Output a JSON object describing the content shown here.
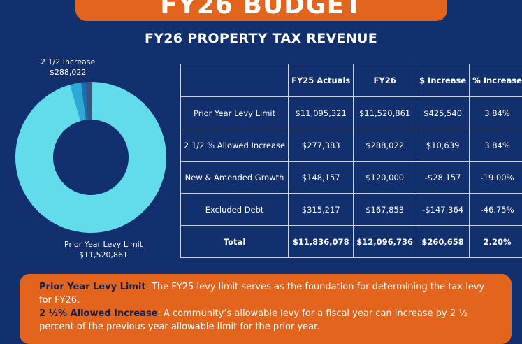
{
  "banner": {
    "title": "FY26 BUDGET"
  },
  "subtitle": "FY26 PROPERTY TAX REVENUE",
  "donut": {
    "top_label": {
      "name": "2 1/2 Increase",
      "value": "$288,022"
    },
    "bottom_label": {
      "name": "Prior Year Levy Limit",
      "value": "$11,520,861"
    }
  },
  "table": {
    "headers": [
      "",
      "FY25 Actuals",
      "FY26",
      "$ Increase",
      "% Increase"
    ],
    "rows": [
      [
        "Prior Year Levy Limit",
        "$11,095,321",
        "$11,520,861",
        "$425,540",
        "3.84%"
      ],
      [
        "2 1/2 % Allowed Increase",
        "$277,383",
        "$288,022",
        "$10,639",
        "3.84%"
      ],
      [
        "New & Amended Growth",
        "$148,157",
        "$120,000",
        "-$28,157",
        "-19.00%"
      ],
      [
        "Excluded Debt",
        "$315,217",
        "$167,853",
        "-$147,364",
        "-46.75%"
      ]
    ],
    "total": [
      "Total",
      "$11,836,078",
      "$12,096,736",
      "$260,658",
      "2.20%"
    ]
  },
  "notes": [
    {
      "term": "Prior Year Levy Limit",
      "text": ": The FY25 levy limit serves as the foundation for determining the tax levy for FY26."
    },
    {
      "term": "2 ½% Allowed Increase",
      "text": ": A community’s allowable levy for a fiscal year can increase by 2 ½ percent of the previous year allowable limit for the prior year."
    }
  ],
  "chart_data": {
    "type": "pie",
    "categories": [
      "Prior Year Levy Limit",
      "2 1/2 % Allowed Increase",
      "New & Amended Growth",
      "Excluded Debt"
    ],
    "values": [
      11520861,
      288022,
      120000,
      167853
    ],
    "colors": [
      "#62dceb",
      "#2ea9d6",
      "#1c6fae",
      "#37557f"
    ]
  }
}
